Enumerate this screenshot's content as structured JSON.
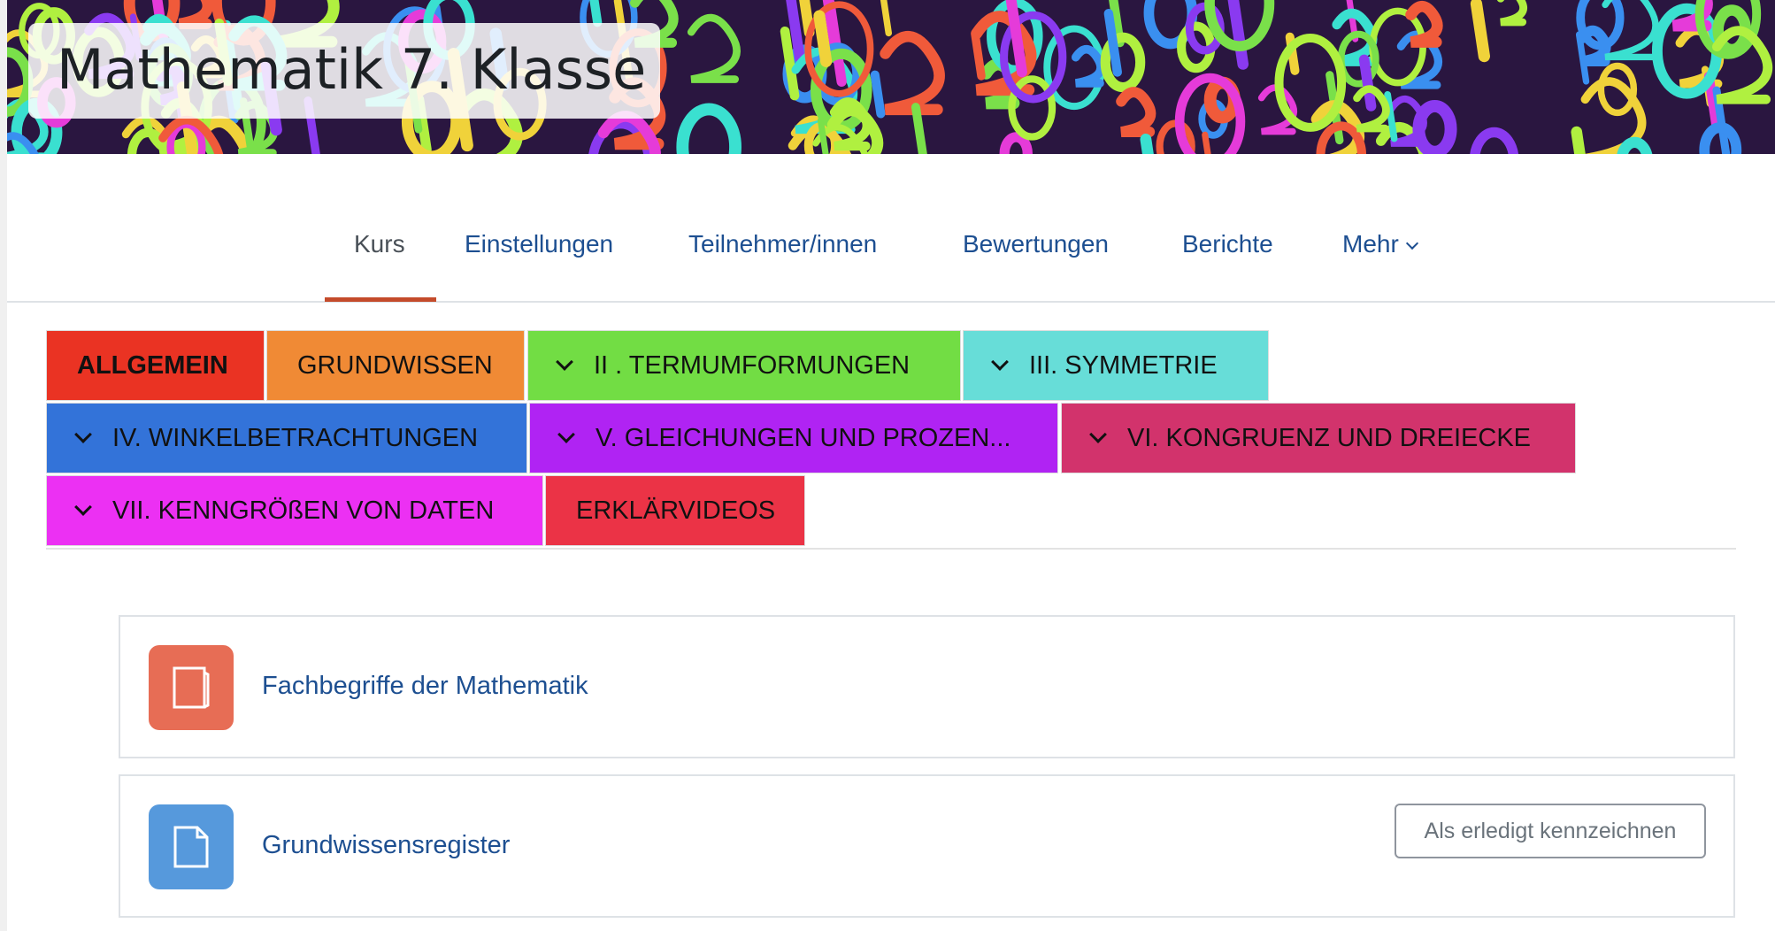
{
  "header": {
    "title": "Mathematik 7. Klasse"
  },
  "nav": {
    "items": [
      {
        "label": "Kurs",
        "active": true
      },
      {
        "label": "Einstellungen"
      },
      {
        "label": "Teilnehmer/innen"
      },
      {
        "label": "Bewertungen"
      },
      {
        "label": "Berichte"
      },
      {
        "label": "Mehr",
        "dropdown": true
      }
    ]
  },
  "sections": [
    {
      "label": "ALLGEMEIN",
      "color": "#ea3323",
      "bold": true,
      "collapsible": false
    },
    {
      "label": "GRUNDWISSEN",
      "color": "#f08a35",
      "collapsible": false
    },
    {
      "label": "II . TERMUMFORMUNGEN",
      "color": "#72dd44",
      "collapsible": true
    },
    {
      "label": "III. SYMMETRIE",
      "color": "#67ddd8",
      "collapsible": true
    },
    {
      "label": "IV. WINKELBETRACHTUNGEN",
      "color": "#3373d9",
      "collapsible": true
    },
    {
      "label": "V. GLEICHUNGEN UND PROZEN...",
      "color": "#b023f3",
      "collapsible": true
    },
    {
      "label": "VI. KONGRUENZ UND DREIECKE",
      "color": "#d2336c",
      "collapsible": true
    },
    {
      "label": "VII. KENNGRÖßEN VON DATEN",
      "color": "#ec30f3",
      "collapsible": true
    },
    {
      "label": "ERKLÄRVIDEOS",
      "color": "#eb3346",
      "collapsible": false
    }
  ],
  "activities": [
    {
      "title": "Fachbegriffe der Mathematik",
      "icon": "book-icon",
      "color": "#e76d55"
    },
    {
      "title": "Grundwissensregister",
      "icon": "file-icon",
      "color": "#5699dc",
      "button": "Als erledigt kennzeichnen"
    }
  ]
}
